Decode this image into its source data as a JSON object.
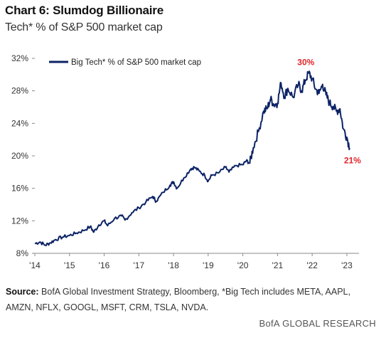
{
  "header": {
    "title": "Chart 6: Slumdog Billionaire",
    "subtitle": "Tech* % of S&P 500 market cap"
  },
  "footer": {
    "source_label": "Source:",
    "source_text": "BofA Global Investment Strategy, Bloomberg, *Big Tech includes META, AAPL, AMZN, NFLX, GOOGL, MSFT, CRM, TSLA, NVDA.",
    "brand": "BofA GLOBAL RESEARCH"
  },
  "colors": {
    "series": "#0c2366",
    "annotation": "#e0262b",
    "axis": "#888888",
    "text": "#333333"
  },
  "chart_data": {
    "type": "line",
    "title": "",
    "xlabel": "",
    "ylabel": "",
    "xlim": [
      2014.0,
      2023.35
    ],
    "ylim": [
      8,
      32
    ],
    "yticks": [
      8,
      12,
      16,
      20,
      24,
      28,
      32
    ],
    "ytick_labels": [
      "8%",
      "12%",
      "16%",
      "20%",
      "24%",
      "28%",
      "32%"
    ],
    "xticks": [
      2014,
      2015,
      2016,
      2017,
      2018,
      2019,
      2020,
      2021,
      2022,
      2023
    ],
    "xtick_labels": [
      "'14",
      "'15",
      "'16",
      "'17",
      "'18",
      "'19",
      "'20",
      "'21",
      "'22",
      "'23"
    ],
    "grid": false,
    "legend_position": "top-left",
    "series": [
      {
        "name": "Big Tech* % of S&P 500 market cap",
        "x": [
          2014.0,
          2014.15,
          2014.3,
          2014.45,
          2014.6,
          2014.8,
          2015.0,
          2015.2,
          2015.4,
          2015.6,
          2015.7,
          2015.85,
          2016.0,
          2016.1,
          2016.3,
          2016.5,
          2016.6,
          2016.8,
          2017.0,
          2017.2,
          2017.4,
          2017.5,
          2017.7,
          2017.9,
          2018.0,
          2018.1,
          2018.3,
          2018.5,
          2018.6,
          2018.75,
          2018.9,
          2019.0,
          2019.1,
          2019.3,
          2019.5,
          2019.6,
          2019.8,
          2020.0,
          2020.1,
          2020.2,
          2020.3,
          2020.45,
          2020.6,
          2020.7,
          2020.8,
          2020.9,
          2021.0,
          2021.1,
          2021.2,
          2021.3,
          2021.45,
          2021.6,
          2021.7,
          2021.8,
          2021.9,
          2022.0,
          2022.1,
          2022.2,
          2022.3,
          2022.4,
          2022.5,
          2022.6,
          2022.7,
          2022.8,
          2022.9,
          2023.0,
          2023.08
        ],
        "values": [
          9.2,
          9.4,
          9.0,
          9.3,
          9.7,
          10.0,
          10.2,
          10.5,
          10.8,
          11.3,
          10.6,
          11.5,
          12.0,
          11.4,
          12.3,
          12.6,
          12.1,
          13.0,
          13.6,
          14.3,
          15.0,
          14.4,
          15.5,
          16.4,
          16.8,
          16.0,
          17.3,
          18.4,
          18.6,
          18.1,
          17.6,
          16.9,
          17.6,
          17.9,
          18.6,
          18.0,
          18.8,
          18.9,
          19.4,
          19.1,
          21.0,
          23.0,
          25.5,
          25.8,
          27.0,
          26.3,
          26.5,
          29.0,
          27.3,
          28.3,
          27.2,
          28.8,
          28.0,
          29.3,
          30.2,
          29.5,
          28.2,
          27.7,
          28.8,
          27.5,
          26.5,
          26.1,
          25.5,
          25.8,
          23.3,
          22.3,
          21.0
        ]
      }
    ],
    "annotations": [
      {
        "text": "30%",
        "x": 2021.9,
        "y": 30.2
      },
      {
        "text": "21%",
        "x": 2023.08,
        "y": 21.0
      }
    ]
  }
}
